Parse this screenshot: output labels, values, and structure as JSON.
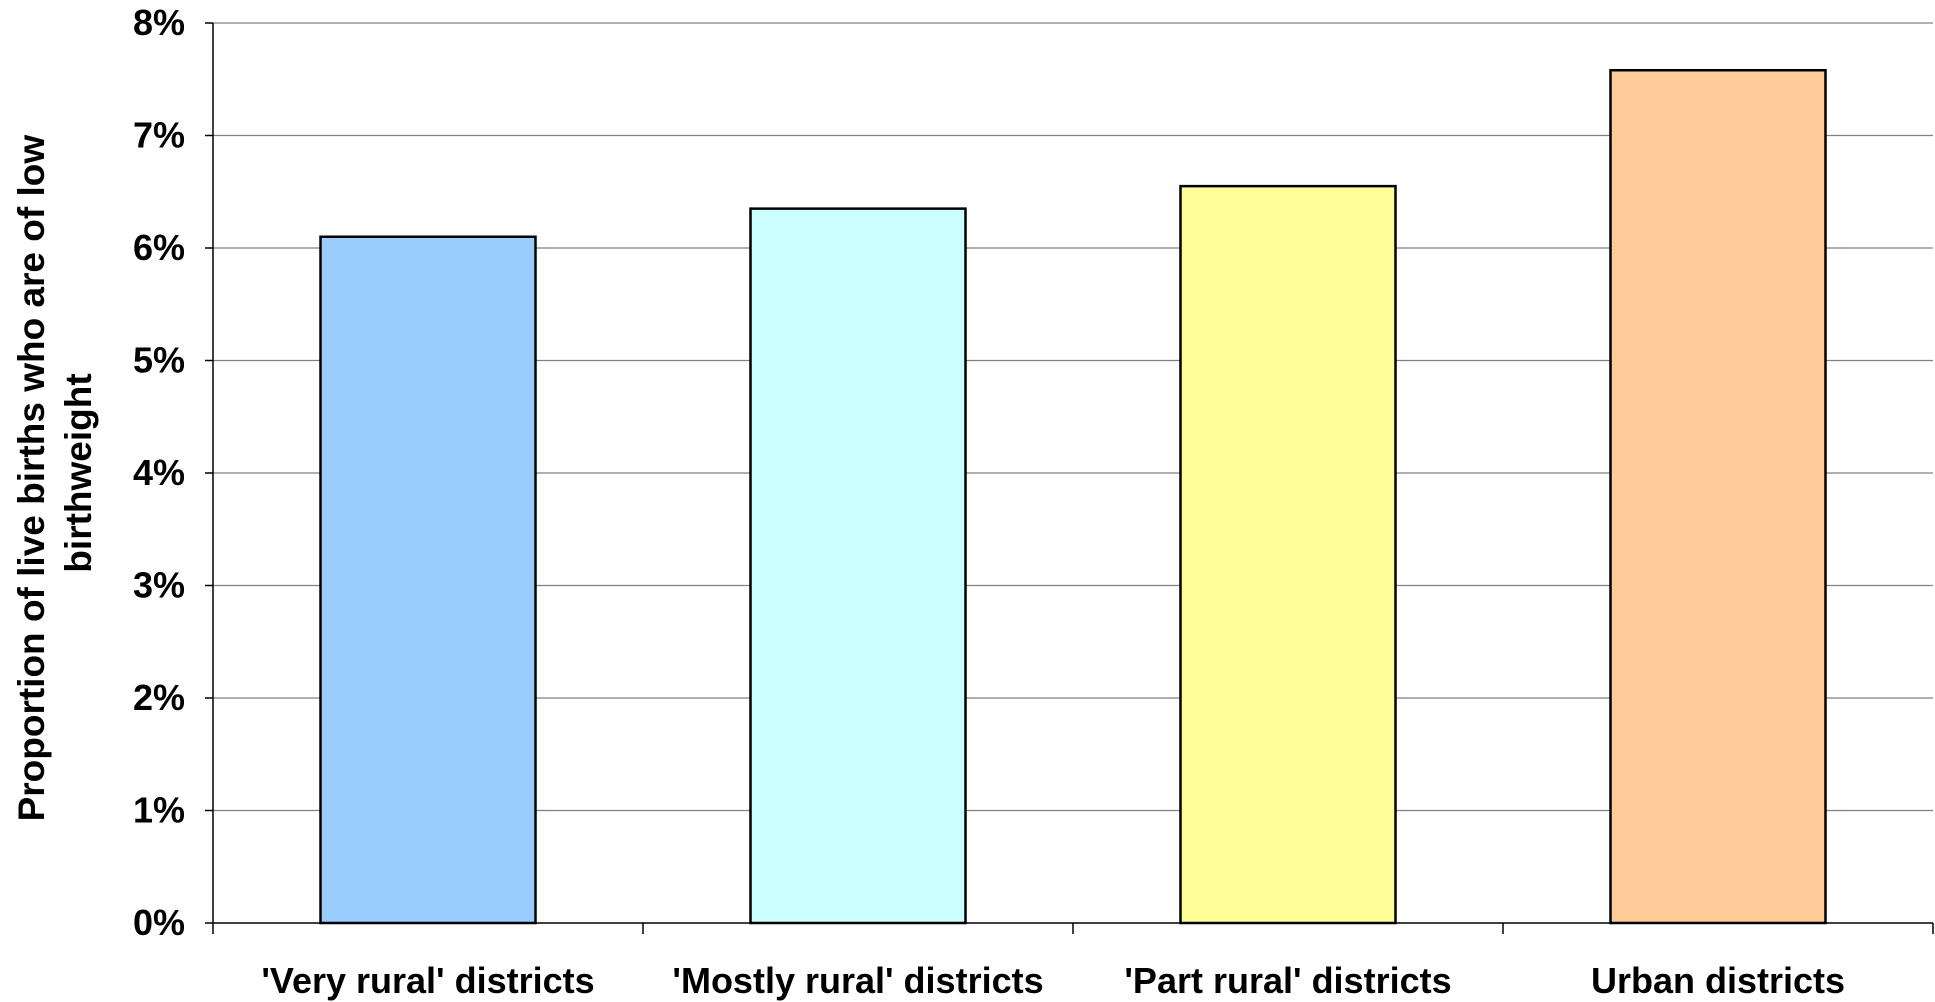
{
  "chart_data": {
    "type": "bar",
    "categories": [
      "'Very rural' districts",
      "'Mostly rural' districts",
      "'Part rural' districts",
      "Urban districts"
    ],
    "values": [
      6.1,
      6.35,
      6.55,
      7.58
    ],
    "value_unit": "%",
    "ylabel": "Proportion of live births who are of low birthweight",
    "ylabel_lines": [
      "Proportion of live births who are of low",
      "birthweight"
    ],
    "xlabel": "",
    "ylim": [
      0,
      8
    ],
    "yticks": [
      "0%",
      "1%",
      "2%",
      "3%",
      "4%",
      "5%",
      "6%",
      "7%",
      "8%"
    ],
    "grid": true,
    "bar_colors": [
      "#99CCFF",
      "#CCFFFF",
      "#FFFF99",
      "#FFCC99"
    ]
  }
}
